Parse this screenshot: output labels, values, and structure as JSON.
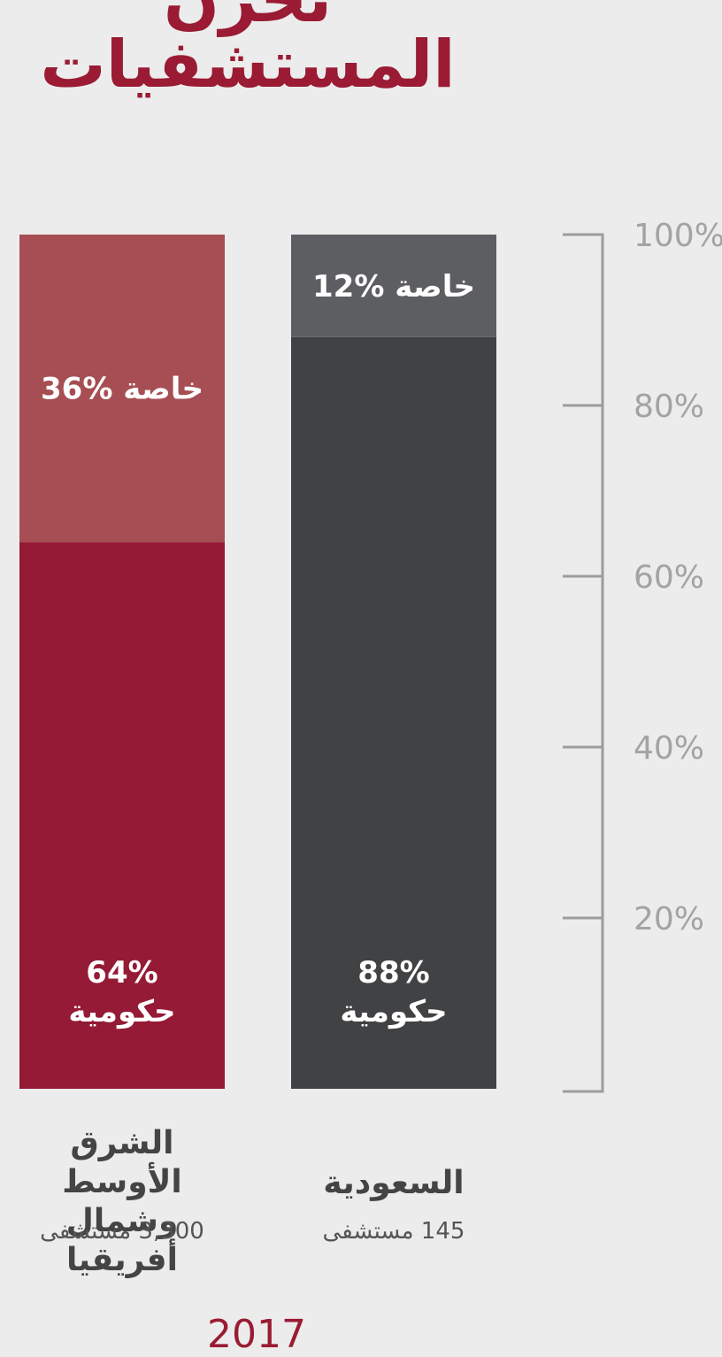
{
  "header": {
    "title": "نحرن المستشفيات"
  },
  "chart_data": {
    "type": "bar",
    "stacked": true,
    "percent": true,
    "ylim": [
      0,
      100
    ],
    "yticks": [
      "20%",
      "40%",
      "60%",
      "80%",
      "100%"
    ],
    "year_label": "2017",
    "categories": [
      {
        "name": "الشرق الأوسط وشمال أفريقيا",
        "name_lines": [
          "الشرق الأوسط",
          "وشمال أفريقيا"
        ],
        "count": "3,300 مستشفى",
        "segments": [
          {
            "value": 64,
            "label_lines": [
              "64%",
              "حكومية"
            ],
            "color": "#951a35"
          },
          {
            "value": 36,
            "label_lines": [
              "36% خاصة"
            ],
            "color": "#a64e53"
          }
        ]
      },
      {
        "name": "السعودية",
        "name_lines": [
          "السعودية"
        ],
        "count": "145 مستشفى",
        "segments": [
          {
            "value": 88,
            "label_lines": [
              "88%",
              "حكومية"
            ],
            "color": "#414244"
          },
          {
            "value": 12,
            "label_lines": [
              "12% خاصة"
            ],
            "color": "#5d5e61"
          }
        ]
      }
    ]
  }
}
